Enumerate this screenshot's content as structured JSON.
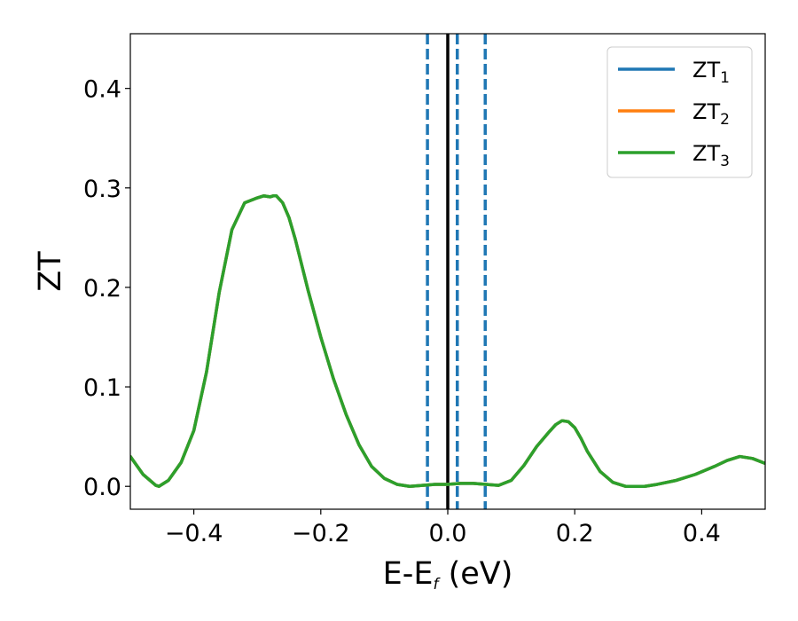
{
  "chart_data": {
    "type": "line",
    "xlabel_main": "E-E",
    "xlabel_sub": "f",
    "xlabel_unit": " (eV)",
    "ylabel": "ZT",
    "xlim": [
      -0.5,
      0.5
    ],
    "ylim": [
      -0.023,
      0.455
    ],
    "xticks": [
      -0.4,
      -0.2,
      0.0,
      0.2,
      0.4
    ],
    "xtick_labels": [
      "−0.4",
      "−0.2",
      "0.0",
      "0.2",
      "0.4"
    ],
    "yticks": [
      0.0,
      0.1,
      0.2,
      0.3,
      0.4
    ],
    "ytick_labels": [
      "0.0",
      "0.1",
      "0.2",
      "0.3",
      "0.4"
    ],
    "grid": false,
    "legend_position": "top-right",
    "vertical_lines": [
      {
        "x": 0.0,
        "style": "solid",
        "color": "#000000"
      },
      {
        "x": -0.032,
        "style": "dashed",
        "color": "#1f77b4"
      },
      {
        "x": 0.015,
        "style": "dashed",
        "color": "#1f77b4"
      },
      {
        "x": 0.059,
        "style": "dashed",
        "color": "#1f77b4"
      }
    ],
    "x": [
      -0.5,
      -0.48,
      -0.46,
      -0.455,
      -0.44,
      -0.42,
      -0.4,
      -0.38,
      -0.36,
      -0.34,
      -0.32,
      -0.3,
      -0.29,
      -0.28,
      -0.275,
      -0.27,
      -0.26,
      -0.25,
      -0.24,
      -0.22,
      -0.2,
      -0.18,
      -0.16,
      -0.14,
      -0.12,
      -0.1,
      -0.08,
      -0.06,
      -0.04,
      -0.02,
      0.0,
      0.02,
      0.04,
      0.06,
      0.08,
      0.1,
      0.12,
      0.14,
      0.16,
      0.17,
      0.18,
      0.19,
      0.2,
      0.21,
      0.22,
      0.24,
      0.26,
      0.28,
      0.3,
      0.31,
      0.33,
      0.36,
      0.39,
      0.42,
      0.44,
      0.46,
      0.48,
      0.5
    ],
    "series": [
      {
        "name_main": "ZT",
        "name_sub": "1",
        "color": "#1f77b4",
        "values": [
          0.03,
          0.012,
          0.001,
          0.0,
          0.006,
          0.024,
          0.056,
          0.115,
          0.195,
          0.258,
          0.285,
          0.29,
          0.292,
          0.291,
          0.292,
          0.292,
          0.285,
          0.27,
          0.248,
          0.197,
          0.15,
          0.108,
          0.072,
          0.042,
          0.02,
          0.008,
          0.002,
          0.0,
          0.001,
          0.002,
          0.002,
          0.003,
          0.003,
          0.002,
          0.001,
          0.006,
          0.021,
          0.04,
          0.055,
          0.062,
          0.066,
          0.065,
          0.059,
          0.048,
          0.035,
          0.015,
          0.004,
          0.0,
          0.0,
          0.0,
          0.002,
          0.006,
          0.012,
          0.02,
          0.026,
          0.03,
          0.028,
          0.023
        ]
      },
      {
        "name_main": "ZT",
        "name_sub": "2",
        "color": "#ff7f0e",
        "values": [
          0.03,
          0.012,
          0.001,
          0.0,
          0.006,
          0.024,
          0.056,
          0.115,
          0.195,
          0.258,
          0.285,
          0.29,
          0.292,
          0.291,
          0.292,
          0.292,
          0.285,
          0.27,
          0.248,
          0.197,
          0.15,
          0.108,
          0.072,
          0.042,
          0.02,
          0.008,
          0.002,
          0.0,
          0.001,
          0.002,
          0.002,
          0.003,
          0.003,
          0.002,
          0.001,
          0.006,
          0.021,
          0.04,
          0.055,
          0.062,
          0.066,
          0.065,
          0.059,
          0.048,
          0.035,
          0.015,
          0.004,
          0.0,
          0.0,
          0.0,
          0.002,
          0.006,
          0.012,
          0.02,
          0.026,
          0.03,
          0.028,
          0.023
        ]
      },
      {
        "name_main": "ZT",
        "name_sub": "3",
        "color": "#2ca02c",
        "values": [
          0.03,
          0.012,
          0.001,
          0.0,
          0.006,
          0.024,
          0.056,
          0.115,
          0.195,
          0.258,
          0.285,
          0.29,
          0.292,
          0.291,
          0.292,
          0.292,
          0.285,
          0.27,
          0.248,
          0.197,
          0.15,
          0.108,
          0.072,
          0.042,
          0.02,
          0.008,
          0.002,
          0.0,
          0.001,
          0.002,
          0.002,
          0.003,
          0.003,
          0.002,
          0.001,
          0.006,
          0.021,
          0.04,
          0.055,
          0.062,
          0.066,
          0.065,
          0.059,
          0.048,
          0.035,
          0.015,
          0.004,
          0.0,
          0.0,
          0.0,
          0.002,
          0.006,
          0.012,
          0.02,
          0.026,
          0.03,
          0.028,
          0.023
        ]
      }
    ]
  }
}
